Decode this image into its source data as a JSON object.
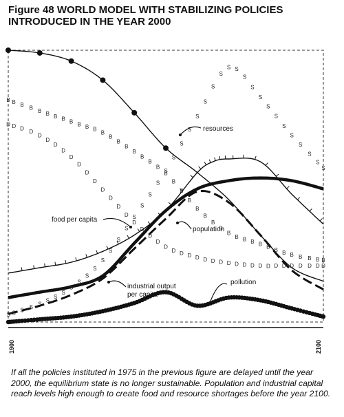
{
  "figure": {
    "title_line1": "Figure 48 WORLD MODEL WITH STABILIZING POLICIES",
    "title_line2": "INTRODUCED IN THE YEAR 2000",
    "caption": "If all the policies instituted in 1975 in the previous figure are delayed until the year 2000, the equilibrium state is no longer sustainable. Population and industrial capital reach levels high enough to create food and resource shortages before the year 2100."
  },
  "chart_data": {
    "type": "line",
    "title": "WORLD MODEL WITH STABILIZING POLICIES INTRODUCED IN THE YEAR 2000",
    "x_tick_labels": [
      "1900",
      "2100"
    ],
    "xlim": [
      1900,
      2100
    ],
    "ylim": [
      0,
      1
    ],
    "grid": false,
    "series": [
      {
        "name": "resources",
        "style": "solid-dotted",
        "x": [
          1900,
          1920,
          1940,
          1960,
          1980,
          2000,
          2020,
          2040,
          2060,
          2080,
          2100
        ],
        "y": [
          1.0,
          0.99,
          0.96,
          0.89,
          0.77,
          0.64,
          0.55,
          0.45,
          0.32,
          0.2,
          0.15
        ]
      },
      {
        "name": "food per capita",
        "style": "solid-hatched",
        "x": [
          1900,
          1920,
          1940,
          1960,
          1980,
          2000,
          2020,
          2030,
          2040,
          2060,
          2080,
          2100
        ],
        "y": [
          0.18,
          0.2,
          0.22,
          0.26,
          0.32,
          0.41,
          0.55,
          0.59,
          0.6,
          0.59,
          0.47,
          0.36
        ]
      },
      {
        "name": "population",
        "style": "long-dash",
        "x": [
          1900,
          1920,
          1940,
          1960,
          1980,
          2000,
          2020,
          2040,
          2060,
          2080,
          2100
        ],
        "y": [
          0.03,
          0.06,
          0.1,
          0.16,
          0.27,
          0.38,
          0.48,
          0.44,
          0.32,
          0.19,
          0.12
        ]
      },
      {
        "name": "industrial output per capita",
        "style": "thick-solid",
        "x": [
          1900,
          1920,
          1940,
          1960,
          1980,
          2000,
          2020,
          2040,
          2060,
          2080,
          2100
        ],
        "y": [
          0.09,
          0.11,
          0.13,
          0.17,
          0.29,
          0.41,
          0.49,
          0.52,
          0.53,
          0.52,
          0.49
        ]
      },
      {
        "name": "pollution",
        "style": "heavy-dotted",
        "x": [
          1900,
          1920,
          1940,
          1960,
          1980,
          2000,
          2020,
          2040,
          2060,
          2080,
          2100
        ],
        "y": [
          0.0,
          0.01,
          0.02,
          0.04,
          0.07,
          0.11,
          0.06,
          0.09,
          0.08,
          0.05,
          0.02
        ]
      },
      {
        "name": "S",
        "style": "letter-S",
        "x": [
          1900,
          1920,
          1940,
          1960,
          1980,
          2000,
          2020,
          2040,
          2060,
          2080,
          2100
        ],
        "y": [
          0.02,
          0.06,
          0.12,
          0.22,
          0.38,
          0.55,
          0.75,
          0.93,
          0.82,
          0.68,
          0.56
        ]
      },
      {
        "name": "B",
        "style": "letter-B",
        "x": [
          1900,
          1920,
          1940,
          1960,
          1980,
          2000,
          2020,
          2040,
          2060,
          2080,
          2100
        ],
        "y": [
          0.81,
          0.77,
          0.73,
          0.69,
          0.62,
          0.54,
          0.41,
          0.32,
          0.28,
          0.24,
          0.22
        ]
      },
      {
        "name": "D",
        "style": "letter-D",
        "x": [
          1900,
          1920,
          1940,
          1960,
          1980,
          2000,
          2020,
          2040,
          2060,
          2080,
          2100
        ],
        "y": [
          0.72,
          0.68,
          0.6,
          0.48,
          0.36,
          0.27,
          0.23,
          0.21,
          0.2,
          0.2,
          0.2
        ]
      }
    ],
    "annotations": [
      {
        "text": "resources"
      },
      {
        "text": "food per capita"
      },
      {
        "text": "population"
      },
      {
        "text": "industrial output"
      },
      {
        "text": "per capita"
      },
      {
        "text": "pollution"
      }
    ]
  }
}
